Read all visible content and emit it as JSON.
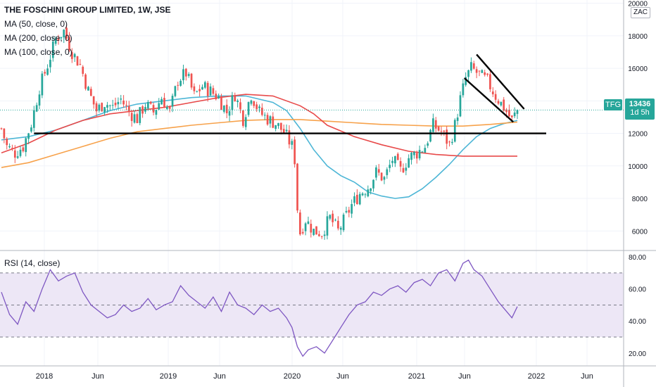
{
  "header": {
    "title": "THE FOSCHINI GROUP LIMITED, 1W, JSE",
    "ma_labels": [
      "MA (50, close, 0)",
      "MA (200, close, 0)",
      "MA (100, close, 0)"
    ],
    "currency": "ZAC"
  },
  "price_tag": {
    "symbol": "TFG",
    "price": "13436",
    "countdown": "1d 5h"
  },
  "rsi_panel": {
    "label": "RSI (14, close)"
  },
  "colors": {
    "up": "#26a69a",
    "down": "#ef5350",
    "ma50": "#4db6d6",
    "ma200": "#f7a24b",
    "ma100": "#e84a4a",
    "rsi": "#7e57c2",
    "rsi_band": "#ede7f6",
    "symbol_tag": "#26a69a",
    "price_tag": "#26a69a"
  },
  "chart_data": [
    {
      "type": "candlestick",
      "title": "THE FOSCHINI GROUP LIMITED, 1W, JSE",
      "x_ticks": [
        "2018",
        "Jun",
        "2019",
        "Jun",
        "2020",
        "Jun",
        "2021",
        "Jun",
        "2022",
        "Jun"
      ],
      "y_ticks": [
        6000,
        8000,
        10000,
        12000,
        14000,
        16000,
        18000,
        20000
      ],
      "ylim": [
        4800,
        20200
      ],
      "last_price": 13436,
      "support_level": 12000,
      "close_path": [
        [
          0,
          12300
        ],
        [
          2,
          11200
        ],
        [
          5,
          10800
        ],
        [
          8,
          11200
        ],
        [
          11,
          12600
        ],
        [
          14,
          14800
        ],
        [
          17,
          16200
        ],
        [
          20,
          17800
        ],
        [
          23,
          18300
        ],
        [
          26,
          17000
        ],
        [
          29,
          16200
        ],
        [
          32,
          14600
        ],
        [
          35,
          13400
        ],
        [
          38,
          13900
        ],
        [
          41,
          13600
        ],
        [
          44,
          14100
        ],
        [
          47,
          13300
        ],
        [
          50,
          12900
        ],
        [
          53,
          13800
        ],
        [
          56,
          13300
        ],
        [
          59,
          14200
        ],
        [
          62,
          13300
        ],
        [
          65,
          15300
        ],
        [
          68,
          15700
        ],
        [
          71,
          14300
        ],
        [
          74,
          14900
        ],
        [
          77,
          14600
        ],
        [
          80,
          14200
        ],
        [
          83,
          13300
        ],
        [
          86,
          14400
        ],
        [
          89,
          12900
        ],
        [
          92,
          14400
        ],
        [
          95,
          13300
        ],
        [
          98,
          12900
        ],
        [
          101,
          12600
        ],
        [
          104,
          12100
        ],
        [
          107,
          11200
        ],
        [
          108,
          10400
        ],
        [
          109,
          7400
        ],
        [
          110,
          5900
        ],
        [
          112,
          6700
        ],
        [
          115,
          6000
        ],
        [
          118,
          5900
        ],
        [
          121,
          6800
        ],
        [
          124,
          6000
        ],
        [
          126,
          6600
        ],
        [
          129,
          7600
        ],
        [
          132,
          8300
        ],
        [
          135,
          8700
        ],
        [
          138,
          9600
        ],
        [
          141,
          9200
        ],
        [
          144,
          10400
        ],
        [
          147,
          9700
        ],
        [
          150,
          10500
        ],
        [
          153,
          10800
        ],
        [
          156,
          11200
        ],
        [
          159,
          12500
        ],
        [
          162,
          12100
        ],
        [
          165,
          11300
        ],
        [
          167,
          12500
        ],
        [
          169,
          14100
        ],
        [
          171,
          15400
        ],
        [
          173,
          16000
        ],
        [
          176,
          15600
        ],
        [
          179,
          15200
        ],
        [
          182,
          14300
        ],
        [
          185,
          13600
        ],
        [
          188,
          12800
        ],
        [
          190,
          13436
        ]
      ],
      "series": [
        {
          "name": "MA (50, close, 0)",
          "x": [
            0,
            10,
            20,
            30,
            40,
            50,
            60,
            70,
            80,
            90,
            100,
            105,
            110,
            115,
            120,
            125,
            130,
            135,
            140,
            145,
            150,
            155,
            160,
            165,
            170,
            175,
            180,
            185,
            190
          ],
          "values": [
            11600,
            11800,
            12200,
            12800,
            13400,
            13800,
            14000,
            14200,
            14300,
            14300,
            13900,
            13400,
            12300,
            11000,
            10000,
            9400,
            9000,
            8400,
            8150,
            8000,
            8100,
            8600,
            9300,
            10100,
            11000,
            11800,
            12300,
            12600,
            12800
          ]
        },
        {
          "name": "MA (200, close, 0)",
          "x": [
            0,
            10,
            20,
            30,
            40,
            50,
            60,
            70,
            80,
            90,
            100,
            110,
            120,
            130,
            140,
            150,
            160,
            170,
            180,
            190
          ],
          "values": [
            9900,
            10200,
            10700,
            11200,
            11700,
            12100,
            12300,
            12500,
            12650,
            12800,
            12850,
            12850,
            12750,
            12650,
            12550,
            12500,
            12450,
            12450,
            12550,
            12700
          ]
        },
        {
          "name": "MA (100, close, 0)",
          "x": [
            0,
            10,
            20,
            30,
            40,
            50,
            60,
            70,
            80,
            90,
            100,
            110,
            115,
            120,
            130,
            140,
            150,
            160,
            170,
            180,
            190
          ],
          "values": [
            10800,
            11400,
            12200,
            12800,
            13200,
            13400,
            13600,
            13900,
            14200,
            14400,
            14300,
            13700,
            13200,
            12500,
            11800,
            11300,
            10900,
            10700,
            10600,
            10600,
            10600
          ]
        }
      ]
    },
    {
      "type": "line",
      "title": "RSI (14, close)",
      "y_ticks": [
        20,
        40,
        60,
        80
      ],
      "ylim": [
        12,
        84
      ],
      "bands": [
        30,
        50,
        70
      ],
      "series": [
        {
          "name": "RSI (14, close)",
          "x": [
            0,
            3,
            6,
            9,
            12,
            15,
            18,
            21,
            24,
            27,
            30,
            33,
            36,
            39,
            42,
            45,
            48,
            51,
            54,
            57,
            60,
            63,
            66,
            69,
            72,
            75,
            78,
            81,
            84,
            87,
            90,
            93,
            96,
            99,
            102,
            105,
            107,
            109,
            111,
            113,
            116,
            119,
            122,
            125,
            128,
            131,
            134,
            137,
            140,
            143,
            146,
            149,
            152,
            155,
            158,
            161,
            164,
            167,
            170,
            172,
            174,
            177,
            180,
            183,
            186,
            188,
            190
          ],
          "values": [
            58,
            44,
            38,
            52,
            46,
            60,
            72,
            65,
            68,
            70,
            58,
            50,
            46,
            42,
            44,
            50,
            46,
            48,
            54,
            47,
            50,
            52,
            62,
            56,
            52,
            48,
            55,
            46,
            58,
            50,
            48,
            44,
            50,
            46,
            48,
            42,
            36,
            24,
            18,
            22,
            24,
            20,
            28,
            36,
            44,
            50,
            52,
            58,
            56,
            60,
            62,
            58,
            64,
            66,
            62,
            70,
            72,
            65,
            76,
            78,
            72,
            68,
            60,
            52,
            46,
            42,
            49
          ]
        }
      ]
    }
  ]
}
